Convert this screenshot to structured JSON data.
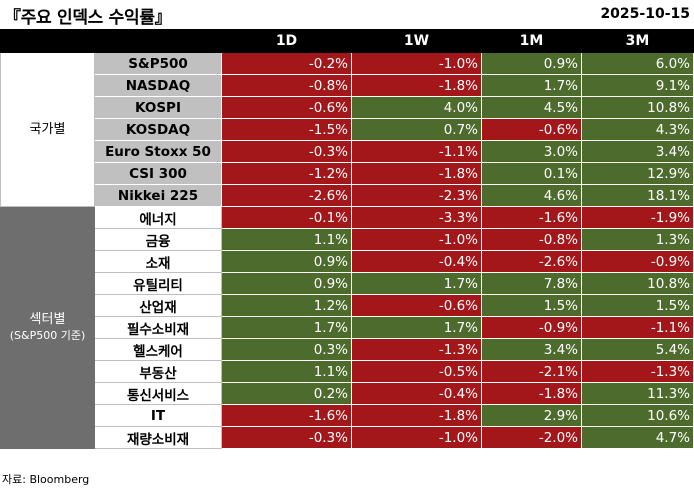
{
  "header": {
    "title": "『주요 인덱스 수익률』",
    "date": "2025-10-15"
  },
  "columns": [
    "1D",
    "1W",
    "1M",
    "3M"
  ],
  "groups": [
    {
      "label": "국가별",
      "sublabel": "",
      "rows": [
        {
          "name": "S&P500",
          "values": [
            "-0.2%",
            "-1.0%",
            "0.9%",
            "6.0%"
          ]
        },
        {
          "name": "NASDAQ",
          "values": [
            "-0.8%",
            "-1.8%",
            "1.7%",
            "9.1%"
          ]
        },
        {
          "name": "KOSPI",
          "values": [
            "-0.6%",
            "4.0%",
            "4.5%",
            "10.8%"
          ]
        },
        {
          "name": "KOSDAQ",
          "values": [
            "-1.5%",
            "0.7%",
            "-0.6%",
            "4.3%"
          ]
        },
        {
          "name": "Euro Stoxx 50",
          "values": [
            "-0.3%",
            "-1.1%",
            "3.0%",
            "3.4%"
          ]
        },
        {
          "name": "CSI 300",
          "values": [
            "-1.2%",
            "-1.8%",
            "0.1%",
            "12.9%"
          ]
        },
        {
          "name": "Nikkei 225",
          "values": [
            "-2.6%",
            "-2.3%",
            "4.6%",
            "18.1%"
          ]
        }
      ]
    },
    {
      "label": "섹터별",
      "sublabel": "(S&P500 기준)",
      "rows": [
        {
          "name": "에너지",
          "values": [
            "-0.1%",
            "-3.3%",
            "-1.6%",
            "-1.9%"
          ]
        },
        {
          "name": "금융",
          "values": [
            "1.1%",
            "-1.0%",
            "-0.8%",
            "1.3%"
          ]
        },
        {
          "name": "소재",
          "values": [
            "0.9%",
            "-0.4%",
            "-2.6%",
            "-0.9%"
          ]
        },
        {
          "name": "유틸리티",
          "values": [
            "0.9%",
            "1.7%",
            "7.8%",
            "10.8%"
          ]
        },
        {
          "name": "산업재",
          "values": [
            "1.2%",
            "-0.6%",
            "1.5%",
            "1.5%"
          ]
        },
        {
          "name": "필수소비재",
          "values": [
            "1.7%",
            "1.7%",
            "-0.9%",
            "-1.1%"
          ]
        },
        {
          "name": "헬스케어",
          "values": [
            "0.3%",
            "-1.3%",
            "3.4%",
            "5.4%"
          ]
        },
        {
          "name": "부동산",
          "values": [
            "1.1%",
            "-0.5%",
            "-2.1%",
            "-1.3%"
          ]
        },
        {
          "name": "통신서비스",
          "values": [
            "0.2%",
            "-0.4%",
            "-1.8%",
            "11.3%"
          ]
        },
        {
          "name": "IT",
          "values": [
            "-1.6%",
            "-1.8%",
            "2.9%",
            "10.6%"
          ]
        },
        {
          "name": "재량소비재",
          "values": [
            "-0.3%",
            "-1.0%",
            "-2.0%",
            "4.7%"
          ]
        }
      ]
    }
  ],
  "colors": {
    "positive": "#4e6b2e",
    "negative": "#a3171a",
    "header_bg": "#000000",
    "index_name_bg": "#c0c0c0",
    "sector_group_bg": "#6e6e6e"
  },
  "footer": {
    "source": "자료: Bloomberg"
  }
}
